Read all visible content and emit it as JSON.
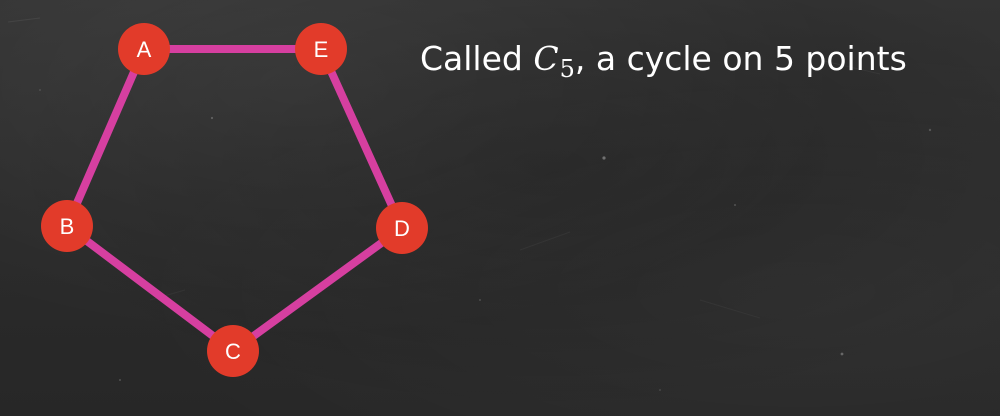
{
  "caption": {
    "prefix": "Called ",
    "math_variable": "C",
    "math_subscript": "5",
    "suffix": ", a cycle on 5 points"
  },
  "graph": {
    "edge_color": "#d63fa0",
    "vertex_color": "#e23b2a",
    "vertex_label_color": "#ffffff",
    "vertices": [
      {
        "id": "A",
        "label": "A"
      },
      {
        "id": "E",
        "label": "E"
      },
      {
        "id": "D",
        "label": "D"
      },
      {
        "id": "C",
        "label": "C"
      },
      {
        "id": "B",
        "label": "B"
      }
    ],
    "edges": [
      {
        "from": "A",
        "to": "E"
      },
      {
        "from": "E",
        "to": "D"
      },
      {
        "from": "D",
        "to": "C"
      },
      {
        "from": "C",
        "to": "B"
      },
      {
        "from": "B",
        "to": "A"
      }
    ]
  }
}
